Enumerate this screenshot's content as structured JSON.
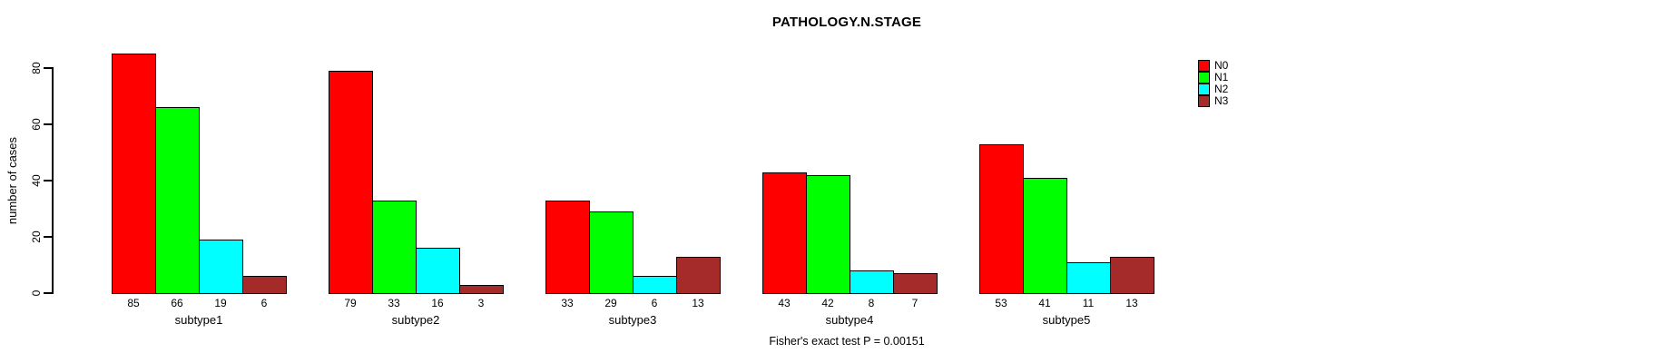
{
  "chart_data": {
    "type": "bar",
    "title": "PATHOLOGY.N.STAGE",
    "ylabel": "number of cases",
    "xlabel": "",
    "ylim": [
      0,
      85
    ],
    "yticks": [
      0,
      20,
      40,
      60,
      80
    ],
    "categories": [
      "subtype1",
      "subtype2",
      "subtype3",
      "subtype4",
      "subtype5"
    ],
    "series": [
      {
        "name": "N0",
        "color": "#FF0000",
        "values": [
          85,
          79,
          33,
          43,
          53
        ]
      },
      {
        "name": "N1",
        "color": "#00FF00",
        "values": [
          66,
          33,
          29,
          42,
          41
        ]
      },
      {
        "name": "N2",
        "color": "#00FFFF",
        "values": [
          19,
          16,
          6,
          8,
          11
        ]
      },
      {
        "name": "N3",
        "color": "#A52A2A",
        "values": [
          6,
          3,
          13,
          7,
          13
        ]
      }
    ],
    "bar_value_labels": true,
    "grid": false,
    "legend_position": "top-right",
    "annotation": "Fisher's exact test P = 0.00151"
  }
}
